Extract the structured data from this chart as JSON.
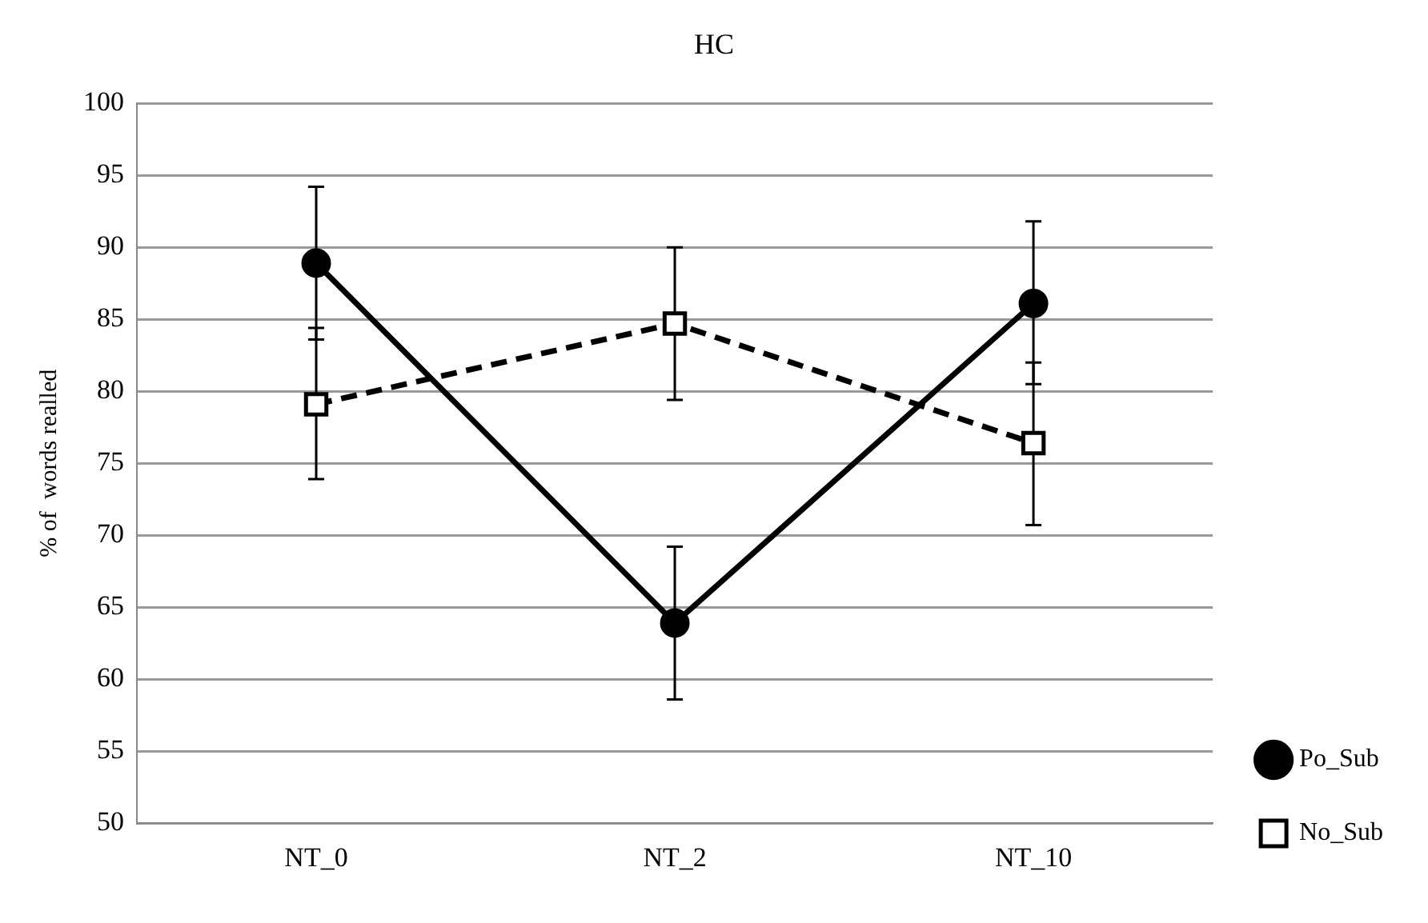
{
  "chart_data": {
    "type": "line",
    "title": "HC",
    "ylabel": "% of  words realled",
    "categories": [
      "NT_0",
      "NT_2",
      "NT_10"
    ],
    "series": [
      {
        "name": "Po_Sub",
        "color": "#000000",
        "values": [
          88.9,
          63.9,
          86.1
        ],
        "errors": [
          [
            83.6,
            94.2
          ],
          [
            58.6,
            69.2
          ],
          [
            80.5,
            91.8
          ]
        ],
        "marker": "circle",
        "line_style": "solid"
      },
      {
        "name": "No_Sub",
        "color": "#000000",
        "values": [
          79.1,
          84.7,
          76.4
        ],
        "errors": [
          [
            73.9,
            84.4
          ],
          [
            79.4,
            90.0
          ],
          [
            70.7,
            82.0
          ]
        ],
        "marker": "square",
        "line_style": "dashed"
      }
    ],
    "ylim": [
      50,
      100
    ],
    "yticks": [
      50,
      55,
      60,
      65,
      70,
      75,
      80,
      85,
      90,
      95,
      100
    ],
    "grid": "y",
    "legend": "right"
  }
}
